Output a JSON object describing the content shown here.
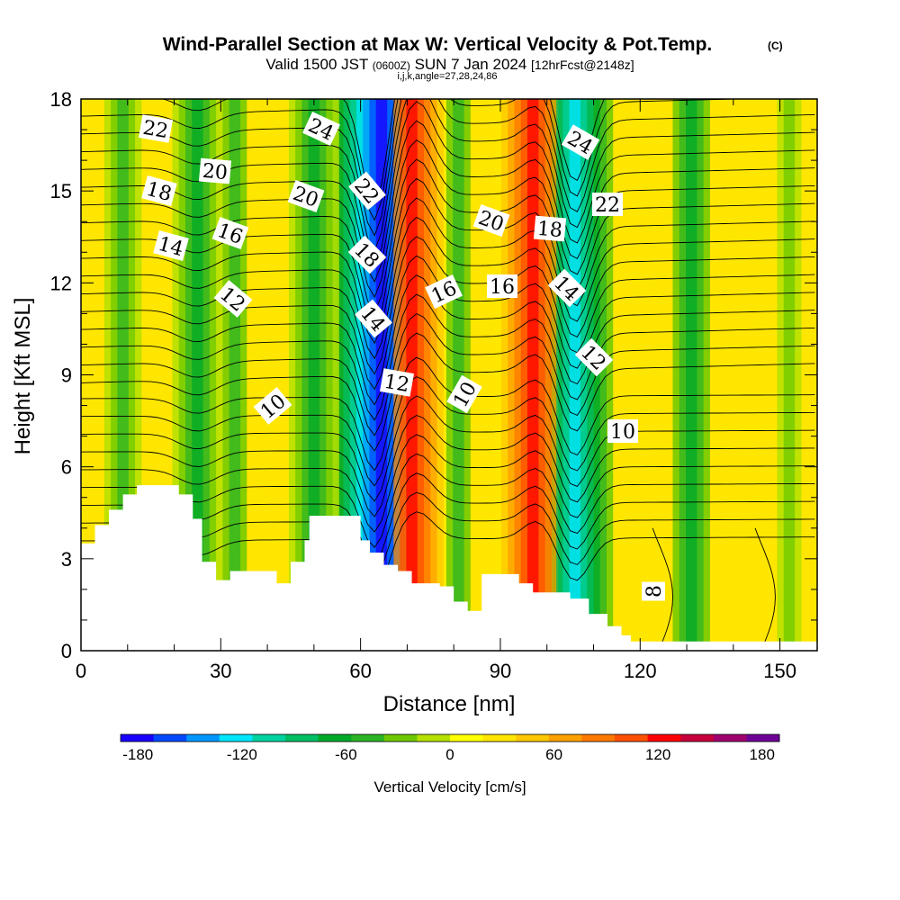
{
  "header": {
    "title": "Wind-Parallel Section at Max W: Vertical Velocity & Pot.Temp.",
    "copyright": "(C)",
    "valid_prefix": "Valid 1500 JST",
    "utc": "(0600Z)",
    "valid_date": "SUN 7 Jan 2024",
    "forecast": "[12hrFcst@2148z]",
    "indices": "i,j,k,angle=27,28,24,86"
  },
  "chart_data": {
    "type": "heatmap",
    "title": "Wind-Parallel Section at Max W: Vertical Velocity & Pot.Temp.",
    "xlabel": "Distance [nm]",
    "ylabel": "Height [Kft MSL]",
    "xlim": [
      0,
      158
    ],
    "ylim": [
      0,
      18
    ],
    "x_ticks": [
      "0",
      "30",
      "60",
      "90",
      "120",
      "150"
    ],
    "y_ticks": [
      "0",
      "3",
      "6",
      "9",
      "12",
      "15",
      "18"
    ],
    "colorbar": {
      "label": "Vertical Velocity [cm/s]",
      "ticks": [
        "-180",
        "-120",
        "-60",
        "0",
        "60",
        "120",
        "180"
      ],
      "min": -190,
      "max": 190,
      "colors": [
        "#1a00ff",
        "#0049ff",
        "#0096ff",
        "#00e6ff",
        "#00d2a0",
        "#00be64",
        "#00aa28",
        "#2cb424",
        "#6ec800",
        "#b4e100",
        "#ffff00",
        "#ffe600",
        "#ffc800",
        "#ffa000",
        "#ff7800",
        "#ff5000",
        "#ff0000",
        "#c8003c",
        "#a0006e",
        "#6e0096"
      ]
    },
    "terrain_profile": [
      [
        0,
        3.5
      ],
      [
        3,
        4.1
      ],
      [
        6,
        4.6
      ],
      [
        9,
        5.1
      ],
      [
        12,
        5.4
      ],
      [
        18,
        5.4
      ],
      [
        21,
        5.1
      ],
      [
        24,
        4.3
      ],
      [
        26,
        2.9
      ],
      [
        29,
        2.3
      ],
      [
        32,
        2.6
      ],
      [
        39,
        2.6
      ],
      [
        42,
        2.2
      ],
      [
        45,
        2.9
      ],
      [
        48,
        3.6
      ],
      [
        49,
        4.4
      ],
      [
        58,
        4.4
      ],
      [
        60,
        3.6
      ],
      [
        62,
        3.2
      ],
      [
        65,
        2.8
      ],
      [
        68,
        2.6
      ],
      [
        71,
        2.2
      ],
      [
        77,
        2.1
      ],
      [
        80,
        1.6
      ],
      [
        83,
        1.3
      ],
      [
        86,
        2.5
      ],
      [
        94,
        2.2
      ],
      [
        97,
        1.9
      ],
      [
        105,
        1.7
      ],
      [
        109,
        1.2
      ],
      [
        113,
        0.8
      ],
      [
        116,
        0.5
      ],
      [
        118,
        0.3
      ],
      [
        158,
        0.3
      ]
    ],
    "vertical_velocity_bands": [
      {
        "x": 9,
        "w": -50
      },
      {
        "x": 25,
        "w": -70
      },
      {
        "x": 33,
        "w": -40
      },
      {
        "x": 50,
        "w": -75
      },
      {
        "x": 64.5,
        "w": -185
      },
      {
        "x": 71,
        "w": 130
      },
      {
        "x": 81,
        "w": -40
      },
      {
        "x": 97,
        "w": 120
      },
      {
        "x": 106,
        "w": -120
      },
      {
        "x": 131,
        "w": -65
      },
      {
        "x": 152,
        "w": -35
      }
    ],
    "potential_temperature_contours": {
      "labels": [
        "22",
        "24",
        "24",
        "20",
        "20",
        "22",
        "18",
        "22",
        "20",
        "18",
        "14",
        "16",
        "18",
        "12",
        "16",
        "16",
        "14",
        "14",
        "12",
        "12",
        "10",
        "10",
        "10",
        "8"
      ]
    }
  }
}
